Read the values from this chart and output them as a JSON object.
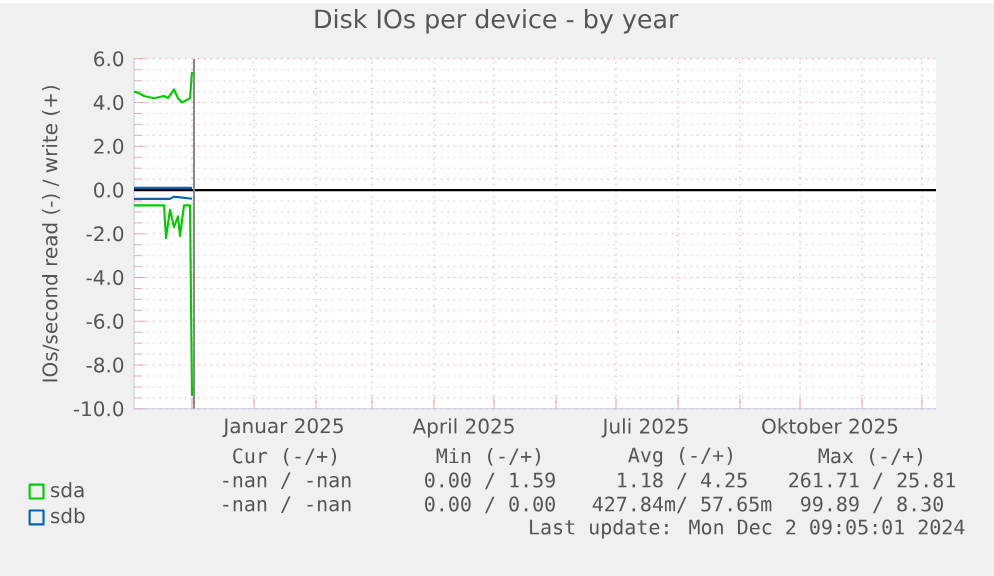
{
  "chart_data": {
    "type": "line",
    "title": "Disk IOs per device - by year",
    "ylabel": "IOs/second read (-) / write (+)",
    "xlim": [
      "2024-11-02",
      "2025-12-08"
    ],
    "ylim": [
      -10,
      6
    ],
    "yticks": [
      {
        "value": -10,
        "label": "-10.0"
      },
      {
        "value": -8,
        "label": "-8.0"
      },
      {
        "value": -6,
        "label": "-6.0"
      },
      {
        "value": -4,
        "label": "-4.0"
      },
      {
        "value": -2,
        "label": "-2.0"
      },
      {
        "value": 0,
        "label": "0.0"
      },
      {
        "value": 2,
        "label": "2.0"
      },
      {
        "value": 4,
        "label": "4.0"
      },
      {
        "value": 6,
        "label": "6.0"
      }
    ],
    "xticks": [
      {
        "value": "2024-12-01",
        "label": null
      },
      {
        "value": "2025-01-01",
        "label": null
      },
      {
        "value": "2025-01-16",
        "label": "Januar 2025"
      },
      {
        "value": "2025-02-01",
        "label": null
      },
      {
        "value": "2025-03-01",
        "label": null
      },
      {
        "value": "2025-04-01",
        "label": null
      },
      {
        "value": "2025-04-16",
        "label": "April 2025"
      },
      {
        "value": "2025-05-01",
        "label": null
      },
      {
        "value": "2025-06-01",
        "label": null
      },
      {
        "value": "2025-07-01",
        "label": null
      },
      {
        "value": "2025-07-16",
        "label": "Juli 2025"
      },
      {
        "value": "2025-08-01",
        "label": null
      },
      {
        "value": "2025-09-01",
        "label": null
      },
      {
        "value": "2025-10-01",
        "label": null
      },
      {
        "value": "2025-10-16",
        "label": "Oktober 2025"
      },
      {
        "value": "2025-11-01",
        "label": null
      },
      {
        "value": "2025-12-01",
        "label": null
      }
    ],
    "grid": true,
    "legend": "bottom left",
    "series": [
      {
        "name": "sda",
        "color": "#00cc00",
        "x": [
          "2024-11-02",
          "2024-11-05",
          "2024-11-07",
          "2024-11-12",
          "2024-11-17",
          "2024-11-19",
          "2024-11-22",
          "2024-11-24",
          "2024-11-26",
          "2024-11-30",
          "2024-12-01"
        ],
        "values": [
          4.5,
          4.4,
          4.3,
          4.2,
          4.3,
          4.2,
          4.6,
          4.2,
          4.0,
          4.2,
          5.4
        ]
      },
      {
        "color": "#00cc00",
        "x": [
          "2024-11-02",
          "2024-11-17",
          "2024-11-18",
          "2024-11-20",
          "2024-11-22",
          "2024-11-24",
          "2024-11-25",
          "2024-11-27",
          "2024-11-30",
          "2024-12-01"
        ],
        "values": [
          -0.7,
          -0.7,
          -2.2,
          -0.9,
          -1.7,
          -1.2,
          -2.1,
          -0.7,
          -0.7,
          -9.4
        ]
      },
      {
        "name": "sdb",
        "color": "#0066b3",
        "x": [
          "2024-11-02",
          "2024-12-01"
        ],
        "values": [
          0.1,
          0.1
        ]
      },
      {
        "color": "#0066b3",
        "x": [
          "2024-11-02",
          "2024-11-20",
          "2024-11-22",
          "2024-12-01"
        ],
        "values": [
          -0.4,
          -0.4,
          -0.3,
          -0.4
        ]
      }
    ],
    "ref_lines": [
      {
        "axis": "y",
        "value": 0,
        "color": "#000000"
      },
      {
        "axis": "x",
        "value": "2024-12-02",
        "color": "#888888"
      }
    ],
    "annotations": [
      "Cur (-/+)",
      "Min (-/+)",
      "Avg (-/+)",
      "Max (-/+)",
      "-nan /  -nan",
      "0.00 /  1.59",
      "1.18 /  4.25",
      "261.71 / 25.81",
      "-nan /  -nan",
      "0.00 /  0.00",
      "427.84m/ 57.65m",
      "99.89 /  8.30",
      "Last update: Mon Dec  2 09:05:01 2024"
    ]
  }
}
